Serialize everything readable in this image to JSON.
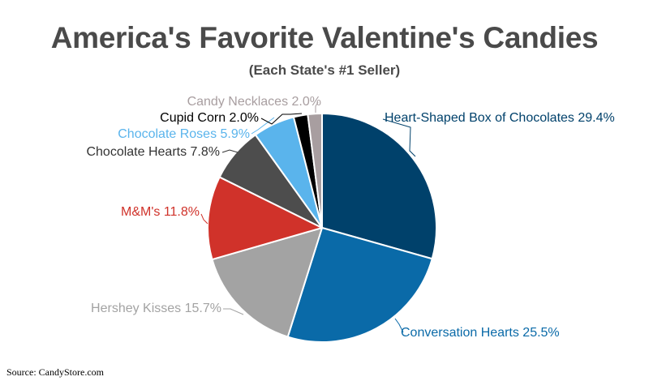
{
  "header": {
    "title": "America's Favorite Valentine's Candies",
    "subtitle": "(Each State's #1 Seller)"
  },
  "footer": {
    "source": "Source: CandyStore.com"
  },
  "chart_data": {
    "type": "pie",
    "title": "America's Favorite Valentine's Candies",
    "subtitle": "(Each State's #1 Seller)",
    "unit": "%",
    "slices": [
      {
        "name": "Heart-Shaped Box of Chocolates",
        "value": 29.4,
        "label": "Heart-Shaped Box of Chocolates 29.4%",
        "color": "#00416b",
        "label_color": "#00416b"
      },
      {
        "name": "Conversation Hearts",
        "value": 25.5,
        "label": "Conversation Hearts 25.5%",
        "color": "#0a6aa8",
        "label_color": "#0a6aa8"
      },
      {
        "name": "Hershey Kisses",
        "value": 15.7,
        "label": "Hershey Kisses 15.7%",
        "color": "#a3a3a3",
        "label_color": "#a3a3a3"
      },
      {
        "name": "M&M's",
        "value": 11.8,
        "label": "M&M's 11.8%",
        "color": "#d0322a",
        "label_color": "#d0322a"
      },
      {
        "name": "Chocolate Hearts",
        "value": 7.8,
        "label": "Chocolate Hearts 7.8%",
        "color": "#4d4d4d",
        "label_color": "#333333"
      },
      {
        "name": "Chocolate Roses",
        "value": 5.9,
        "label": "Chocolate Roses 5.9%",
        "color": "#5ab4ec",
        "label_color": "#5ab4ec"
      },
      {
        "name": "Cupid Corn",
        "value": 2.0,
        "label": "Cupid Corn 2.0%",
        "color": "#000000",
        "label_color": "#000000"
      },
      {
        "name": "Candy Necklaces",
        "value": 2.0,
        "label": "Candy Necklaces 2.0%",
        "color": "#a89ea0",
        "label_color": "#a89ea0"
      }
    ]
  }
}
